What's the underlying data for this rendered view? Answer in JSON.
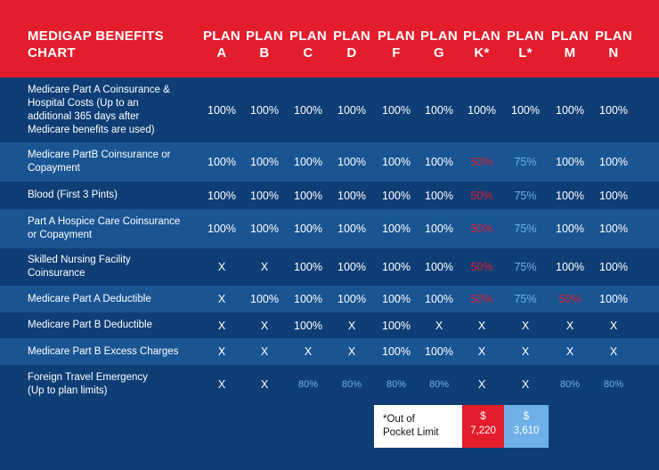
{
  "title": "MEDIGAP BENEFITS\nCHART",
  "plans": [
    {
      "line1": "PLAN",
      "line2": "A"
    },
    {
      "line1": "PLAN",
      "line2": "B"
    },
    {
      "line1": "PLAN",
      "line2": "C"
    },
    {
      "line1": "PLAN",
      "line2": "D"
    },
    {
      "line1": "PLAN",
      "line2": "F"
    },
    {
      "line1": "PLAN",
      "line2": "G"
    },
    {
      "line1": "PLAN",
      "line2": "K*"
    },
    {
      "line1": "PLAN",
      "line2": "L*"
    },
    {
      "line1": "PLAN",
      "line2": "M"
    },
    {
      "line1": "PLAN",
      "line2": "N"
    }
  ],
  "rows": [
    {
      "label": "Medicare Part A Coinsurance &\nHospital Costs (Up to an\nadditional 365 days after\nMedicare benefits are used)",
      "values": [
        "100%",
        "100%",
        "100%",
        "100%",
        "100%",
        "100%",
        "100%",
        "100%",
        "100%",
        "100%"
      ]
    },
    {
      "label": "Medicare PartB Coinsurance or\nCopayment",
      "values": [
        "100%",
        "100%",
        "100%",
        "100%",
        "100%",
        "100%",
        "50%",
        "75%",
        "100%",
        "100%"
      ]
    },
    {
      "label": "Blood (First 3 Pints)",
      "values": [
        "100%",
        "100%",
        "100%",
        "100%",
        "100%",
        "100%",
        "50%",
        "75%",
        "100%",
        "100%"
      ]
    },
    {
      "label": "Part A Hospice Care Coinsurance\nor Copayment",
      "values": [
        "100%",
        "100%",
        "100%",
        "100%",
        "100%",
        "100%",
        "50%",
        "75%",
        "100%",
        "100%"
      ]
    },
    {
      "label": "Skilled Nursing Facility\nCoinsurance",
      "values": [
        "X",
        "X",
        "100%",
        "100%",
        "100%",
        "100%",
        "50%",
        "75%",
        "100%",
        "100%"
      ]
    },
    {
      "label": "Medicare Part A Deductible",
      "values": [
        "X",
        "100%",
        "100%",
        "100%",
        "100%",
        "100%",
        "50%",
        "75%",
        "50%",
        "100%"
      ]
    },
    {
      "label": "Medicare Part B Deductible",
      "values": [
        "X",
        "X",
        "100%",
        "X",
        "100%",
        "X",
        "X",
        "X",
        "X",
        "X"
      ]
    },
    {
      "label": "Medicare Part B Excess Charges",
      "values": [
        "X",
        "X",
        "X",
        "X",
        "100%",
        "100%",
        "X",
        "X",
        "X",
        "X"
      ]
    },
    {
      "label": "Foreign Travel Emergency\n(Up to plan limits)",
      "values": [
        "X",
        "X",
        "80%",
        "80%",
        "80%",
        "80%",
        "X",
        "X",
        "80%",
        "80%"
      ]
    }
  ],
  "colors": {
    "header": "#e31d2b",
    "dark_row": "#0f3e76",
    "light_row": "#1a5593",
    "accent_red": "#e31d2b",
    "accent_blue": "#6fb0e8"
  },
  "legend": {
    "note": "*Out of\nPocket Limit",
    "k_symbol": "$",
    "k_amount": "7,220",
    "l_symbol": "$",
    "l_amount": "3,610"
  }
}
